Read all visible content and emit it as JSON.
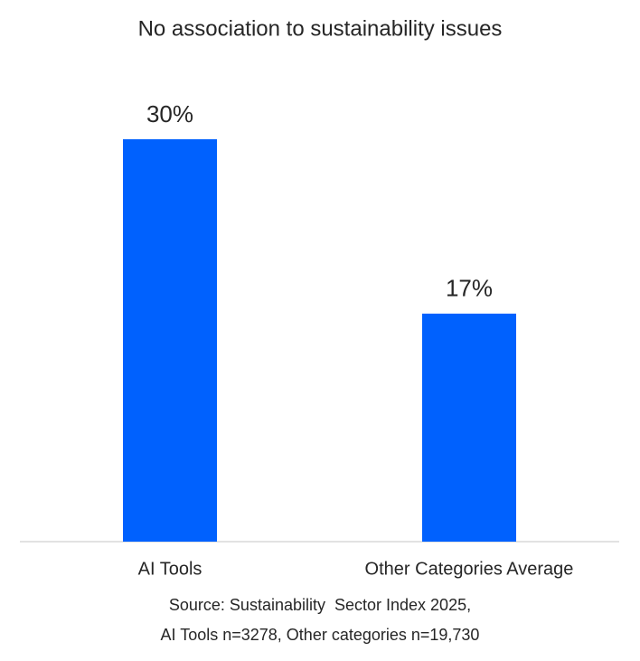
{
  "chart_data": {
    "type": "bar",
    "title": "No association to sustainability issues",
    "categories": [
      "AI Tools",
      "Other Categories Average"
    ],
    "values": [
      30,
      17
    ],
    "value_labels": [
      "30%",
      "17%"
    ],
    "color": "#0061fe",
    "source": [
      "Source: Sustainability  Sector Index 2025,",
      "AI Tools n=3278, Other categories n=19,730"
    ]
  }
}
